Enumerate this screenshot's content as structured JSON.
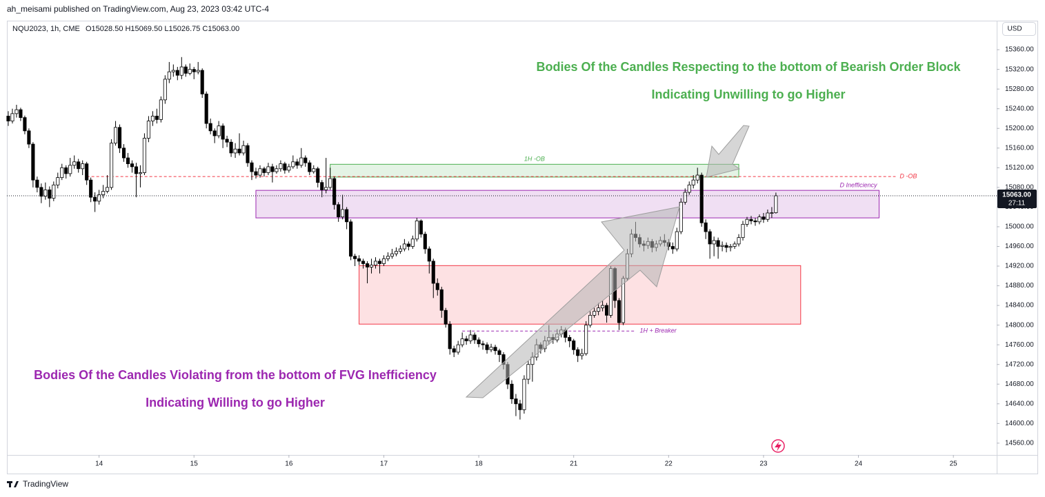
{
  "header": {
    "byline": "ah_meisami published on TradingView.com, Aug 23, 2023 03:42 UTC-4",
    "symbol": "NQU2023, 1h, CME",
    "ohlc": "O15028.50 H15069.50 L15026.75 C15063.00",
    "currency": "USD",
    "brand": "TradingView"
  },
  "chart_data": {
    "type": "candlestick",
    "open": [
      15225,
      15215,
      15230,
      15238,
      15222,
      15195,
      15168,
      15095,
      15080,
      15062,
      15075,
      15058,
      15085,
      15100,
      15120,
      15108,
      15125,
      15132,
      15118,
      15128,
      15095,
      15060,
      15052,
      15065,
      15072,
      15080,
      15170,
      15202,
      15160,
      15140,
      15128,
      15122,
      15108,
      15110,
      15180,
      15215,
      15225,
      15218,
      15258,
      15300,
      15315,
      15318,
      15308,
      15325,
      15312,
      15320,
      15315,
      15318,
      15270,
      15210,
      15195,
      15185,
      15205,
      15178,
      15172,
      15150,
      15158,
      15150,
      15165,
      15130,
      15112,
      15105,
      15118,
      15110,
      15122,
      15112,
      15118,
      15128,
      15115,
      15122,
      15132,
      15125,
      15140,
      15130,
      15112,
      15118,
      15090,
      15075,
      15080,
      15098,
      15045,
      15020,
      15035,
      15010,
      14940,
      14935,
      14930,
      14925,
      14918,
      14922,
      14930,
      14925,
      14935,
      14940,
      14945,
      14950,
      14955,
      14965,
      14960,
      14975,
      15012,
      14985,
      14955,
      14930,
      14885,
      14872,
      14830,
      14802,
      14752,
      14745,
      14760,
      14772,
      14768,
      14780,
      14770,
      14762,
      14760,
      14750,
      14755,
      14748,
      14740,
      14720,
      14680,
      14650,
      14640,
      14628,
      14690,
      14720,
      14735,
      14760,
      14752,
      14768,
      14775,
      14770,
      14782,
      14790,
      14775,
      14768,
      14750,
      14738,
      14742,
      14800,
      14820,
      14828,
      14835,
      14840,
      14820,
      14915,
      14850,
      14805,
      14895,
      14945,
      14985,
      14978,
      14965,
      14962,
      14970,
      14958,
      14965,
      14972,
      14968,
      14960,
      14955,
      14990,
      15050,
      15070,
      15085,
      15095,
      15105,
      15008,
      14990,
      14965,
      14972,
      14960,
      14962,
      14958,
      14960,
      14965,
      14978,
      15005,
      15015,
      15012,
      15010,
      15020,
      15015,
      15028,
      15028.5
    ],
    "high": [
      15235,
      15240,
      15248,
      15242,
      15226,
      15200,
      15172,
      15102,
      15088,
      15090,
      15082,
      15092,
      15110,
      15128,
      15125,
      15140,
      15145,
      15138,
      15135,
      15132,
      15100,
      15070,
      15075,
      15085,
      15105,
      15178,
      15215,
      15208,
      15168,
      15150,
      15135,
      15130,
      15125,
      15190,
      15225,
      15235,
      15240,
      15265,
      15308,
      15335,
      15330,
      15325,
      15345,
      15330,
      15332,
      15325,
      15335,
      15322,
      15275,
      15220,
      15200,
      15215,
      15210,
      15185,
      15178,
      15170,
      15190,
      15175,
      15170,
      15135,
      15120,
      15125,
      15122,
      15130,
      15128,
      15125,
      15135,
      15132,
      15128,
      15145,
      15138,
      15160,
      15145,
      15135,
      15125,
      15122,
      15095,
      15140,
      15120,
      15102,
      15050,
      15065,
      15040,
      15015,
      14945,
      14942,
      14935,
      14930,
      14935,
      14938,
      14935,
      14942,
      14948,
      14955,
      14958,
      14962,
      14975,
      14970,
      14982,
      15018,
      15015,
      14990,
      14960,
      14935,
      14895,
      14878,
      14835,
      14808,
      14758,
      14768,
      14785,
      14778,
      14790,
      14785,
      14775,
      14768,
      14765,
      14762,
      14760,
      14752,
      14745,
      14725,
      14688,
      14660,
      14648,
      14698,
      14728,
      14745,
      14772,
      14765,
      14778,
      14800,
      14782,
      14792,
      14798,
      14795,
      14780,
      14772,
      14755,
      14752,
      14808,
      14828,
      14835,
      14845,
      14850,
      14845,
      14920,
      14918,
      14855,
      14900,
      14955,
      14995,
      15010,
      14985,
      14972,
      14978,
      14975,
      14972,
      14980,
      14985,
      14975,
      14968,
      14998,
      15058,
      15078,
      15092,
      15105,
      15120,
      15110,
      15015,
      14995,
      14980,
      14978,
      14970,
      14968,
      14965,
      14970,
      14985,
      15012,
      15020,
      15022,
      15018,
      15025,
      15028,
      15035,
      15040,
      15069.5
    ],
    "low": [
      15205,
      15210,
      15222,
      15215,
      15188,
      15160,
      15080,
      15070,
      15048,
      15055,
      15040,
      15052,
      15078,
      15095,
      15098,
      15102,
      15118,
      15110,
      15105,
      15085,
      15050,
      15030,
      15045,
      15058,
      15068,
      15075,
      15165,
      15150,
      15132,
      15120,
      15110,
      15060,
      15080,
      15105,
      15172,
      15205,
      15210,
      15212,
      15250,
      15292,
      15305,
      15298,
      15300,
      15305,
      15308,
      15300,
      15310,
      15262,
      15200,
      15188,
      15170,
      15180,
      15160,
      15162,
      15142,
      15140,
      15145,
      15145,
      15122,
      15095,
      15098,
      15100,
      15102,
      15105,
      15090,
      15108,
      15112,
      15108,
      15110,
      15118,
      15118,
      15120,
      15122,
      15105,
      15108,
      15080,
      15060,
      15068,
      15075,
      15035,
      15010,
      15015,
      14995,
      14932,
      14920,
      14922,
      14915,
      14885,
      14905,
      14915,
      14905,
      14920,
      14930,
      14935,
      14940,
      14945,
      14950,
      14952,
      14955,
      14970,
      14978,
      14945,
      14905,
      14855,
      14860,
      14815,
      14795,
      14740,
      14735,
      14740,
      14755,
      14760,
      14762,
      14762,
      14755,
      14750,
      14742,
      14745,
      14740,
      14725,
      14710,
      14670,
      14640,
      14615,
      14608,
      14620,
      14680,
      14685,
      14728,
      14742,
      14745,
      14760,
      14762,
      14765,
      14775,
      14765,
      14755,
      14740,
      14725,
      14730,
      14738,
      14795,
      14815,
      14820,
      14828,
      14805,
      14815,
      14835,
      14790,
      14800,
      14890,
      14938,
      14970,
      14958,
      14950,
      14955,
      14948,
      14950,
      14960,
      14960,
      14952,
      14945,
      14950,
      14985,
      15045,
      15065,
      15078,
      15088,
      15000,
      14975,
      14935,
      14940,
      14935,
      14950,
      14948,
      14950,
      14955,
      14960,
      14972,
      15000,
      15005,
      15002,
      15005,
      15008,
      15010,
      15018,
      15026.75
    ],
    "close": [
      15215,
      15230,
      15238,
      15222,
      15195,
      15168,
      15095,
      15080,
      15062,
      15075,
      15058,
      15085,
      15100,
      15120,
      15108,
      15125,
      15132,
      15118,
      15128,
      15095,
      15060,
      15052,
      15065,
      15072,
      15080,
      15170,
      15202,
      15160,
      15140,
      15128,
      15122,
      15108,
      15110,
      15180,
      15215,
      15225,
      15218,
      15258,
      15300,
      15315,
      15318,
      15308,
      15325,
      15312,
      15320,
      15315,
      15318,
      15270,
      15210,
      15195,
      15185,
      15205,
      15178,
      15172,
      15150,
      15158,
      15150,
      15165,
      15130,
      15112,
      15105,
      15118,
      15110,
      15122,
      15112,
      15118,
      15128,
      15115,
      15122,
      15132,
      15125,
      15140,
      15130,
      15112,
      15118,
      15090,
      15075,
      15080,
      15098,
      15045,
      15020,
      15035,
      15010,
      14940,
      14935,
      14930,
      14925,
      14918,
      14922,
      14930,
      14925,
      14935,
      14940,
      14945,
      14950,
      14955,
      14965,
      14960,
      14975,
      15012,
      14985,
      14955,
      14930,
      14885,
      14872,
      14830,
      14802,
      14752,
      14745,
      14760,
      14772,
      14768,
      14780,
      14770,
      14762,
      14760,
      14750,
      14755,
      14748,
      14740,
      14720,
      14680,
      14650,
      14640,
      14628,
      14690,
      14720,
      14735,
      14760,
      14752,
      14768,
      14775,
      14770,
      14782,
      14790,
      14775,
      14768,
      14750,
      14738,
      14742,
      14800,
      14820,
      14828,
      14835,
      14840,
      14820,
      14915,
      14850,
      14805,
      14895,
      14945,
      14985,
      14978,
      14965,
      14962,
      14970,
      14958,
      14965,
      14972,
      14968,
      14960,
      14955,
      14990,
      15050,
      15070,
      15085,
      15095,
      15105,
      15008,
      14990,
      14965,
      14972,
      14960,
      14962,
      14958,
      14960,
      14965,
      14978,
      15005,
      15015,
      15012,
      15010,
      15020,
      15015,
      15028,
      15028.5,
      15063
    ],
    "up_color": "#ffffff",
    "down_color": "#000000",
    "wick_color": "#000000",
    "xlim": [
      -0.5,
      239.5
    ],
    "xticks": [
      {
        "value": 22,
        "label": "14"
      },
      {
        "value": 45,
        "label": "15"
      },
      {
        "value": 68,
        "label": "16"
      },
      {
        "value": 91,
        "label": "17"
      },
      {
        "value": 114,
        "label": "18"
      },
      {
        "value": 137,
        "label": "21"
      },
      {
        "value": 160,
        "label": "22"
      },
      {
        "value": 183,
        "label": "23"
      },
      {
        "value": 206,
        "label": "24"
      },
      {
        "value": 229,
        "label": "25"
      }
    ],
    "ylim": [
      14536,
      15419
    ],
    "yticks": [
      {
        "value": 14560,
        "label": "14560.00"
      },
      {
        "value": 14600,
        "label": "14600.00"
      },
      {
        "value": 14640,
        "label": "14640.00"
      },
      {
        "value": 14680,
        "label": "14680.00"
      },
      {
        "value": 14720,
        "label": "14720.00"
      },
      {
        "value": 14760,
        "label": "14760.00"
      },
      {
        "value": 14800,
        "label": "14800.00"
      },
      {
        "value": 14840,
        "label": "14840.00"
      },
      {
        "value": 14880,
        "label": "14880.00"
      },
      {
        "value": 14920,
        "label": "14920.00"
      },
      {
        "value": 14960,
        "label": "14960.00"
      },
      {
        "value": 15000,
        "label": "15000.00"
      },
      {
        "value": 15040,
        "label": "15040.00"
      },
      {
        "value": 15080,
        "label": "15080.00"
      },
      {
        "value": 15120,
        "label": "15120.00"
      },
      {
        "value": 15160,
        "label": "15160.00"
      },
      {
        "value": 15200,
        "label": "15200.00"
      },
      {
        "value": 15240,
        "label": "15240.00"
      },
      {
        "value": 15280,
        "label": "15280.00"
      },
      {
        "value": 15320,
        "label": "15320.00"
      },
      {
        "value": 15360,
        "label": "15360.00"
      }
    ],
    "last_price_label": "15063.00",
    "countdown": "27:11",
    "zones": [
      {
        "label": "1H -OB",
        "top": 15127,
        "bottom": 15101,
        "start": 78,
        "end": 177,
        "color": "#4caf50",
        "label_pos": "center"
      },
      {
        "label": "D Inefficiency",
        "top": 15074,
        "bottom": 15018,
        "start": 60,
        "end": 211,
        "color": "#9c27b0",
        "label_pos": "right"
      },
      {
        "top": 14921,
        "bottom": 14802,
        "start": 85,
        "end": 192,
        "color": "#f23645"
      }
    ],
    "levels": [
      {
        "label": "D -OB",
        "value": 15102,
        "start": 19,
        "end": 215,
        "color": "#f23645"
      },
      {
        "label": "1H + Breaker",
        "value": 14788,
        "start": 110,
        "end": 152,
        "color": "#9c27b0"
      }
    ],
    "annotations": [
      {
        "text": "Bodies Of the Candles Respecting to the bottom of Bearish Order Block",
        "color": "#4caf50"
      },
      {
        "text": "Indicating Unwilling to go Higher",
        "color": "#4caf50"
      },
      {
        "text": "Bodies Of the Candles Violating from the bottom of FVG Inefficiency",
        "color": "#9c27b0"
      },
      {
        "text": "Indicating Willing to go Higher",
        "color": "#9c27b0"
      }
    ]
  }
}
